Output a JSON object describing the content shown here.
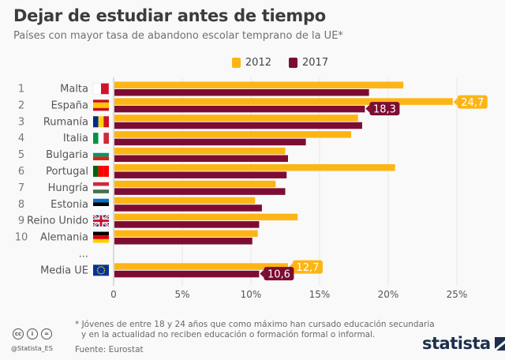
{
  "header": {
    "title": "Dejar de estudiar antes de tiempo",
    "subtitle": "Países con mayor tasa de abandono escolar temprano de la UE*"
  },
  "colors": {
    "s2012": "#fdb515",
    "s2017": "#7d0c33",
    "grid": "#e6e6e6",
    "text": "#555555"
  },
  "chart_data": {
    "type": "bar",
    "orientation": "horizontal",
    "title": "Dejar de estudiar antes de tiempo",
    "subtitle": "Países con mayor tasa de abandono escolar temprano de la UE*",
    "xlabel": "",
    "ylabel": "",
    "xlim": [
      0,
      26
    ],
    "x_ticks": [
      0,
      5,
      10,
      15,
      20,
      25
    ],
    "x_tick_labels": [
      "0",
      "5%",
      "10%",
      "15%",
      "20%",
      "25%"
    ],
    "grid": true,
    "legend_position": "top-center",
    "categories": [
      {
        "rank": "1",
        "name": "Malta",
        "flag": "mt"
      },
      {
        "rank": "2",
        "name": "España",
        "flag": "es"
      },
      {
        "rank": "3",
        "name": "Rumanía",
        "flag": "ro"
      },
      {
        "rank": "4",
        "name": "Italia",
        "flag": "it"
      },
      {
        "rank": "5",
        "name": "Bulgaria",
        "flag": "bg"
      },
      {
        "rank": "6",
        "name": "Portugal",
        "flag": "pt"
      },
      {
        "rank": "7",
        "name": "Hungría",
        "flag": "hu"
      },
      {
        "rank": "8",
        "name": "Estonia",
        "flag": "ee"
      },
      {
        "rank": "9",
        "name": "Reino Unido",
        "flag": "gb"
      },
      {
        "rank": "10",
        "name": "Alemania",
        "flag": "de"
      },
      {
        "rank": "",
        "name": "...",
        "flag": null
      },
      {
        "rank": "",
        "name": "Media UE",
        "flag": "eu"
      }
    ],
    "series": [
      {
        "name": "2012",
        "values": [
          21.1,
          24.7,
          17.8,
          17.3,
          12.5,
          20.5,
          11.8,
          10.3,
          13.4,
          10.5,
          null,
          12.7
        ]
      },
      {
        "name": "2017",
        "values": [
          18.6,
          18.3,
          18.1,
          14.0,
          12.7,
          12.6,
          12.5,
          10.8,
          10.6,
          10.1,
          null,
          10.6
        ]
      }
    ],
    "annotations": [
      {
        "category": "España",
        "series": "2012",
        "label": "24,7"
      },
      {
        "category": "España",
        "series": "2017",
        "label": "18,3"
      },
      {
        "category": "Media UE",
        "series": "2012",
        "label": "12,7"
      },
      {
        "category": "Media UE",
        "series": "2017",
        "label": "10,6"
      }
    ]
  },
  "footer": {
    "footnote_line1": "* Jóvenes de entre 18 y 24 años que como máximo han cursado educación secundaria",
    "footnote_line2": "y en la actualidad no reciben educación o formación formal o informal.",
    "source": "Fuente: Eurostat",
    "handle": "@Statista_ES",
    "logo": "statista",
    "cc_icons": [
      "cc",
      "by",
      "nd"
    ]
  }
}
